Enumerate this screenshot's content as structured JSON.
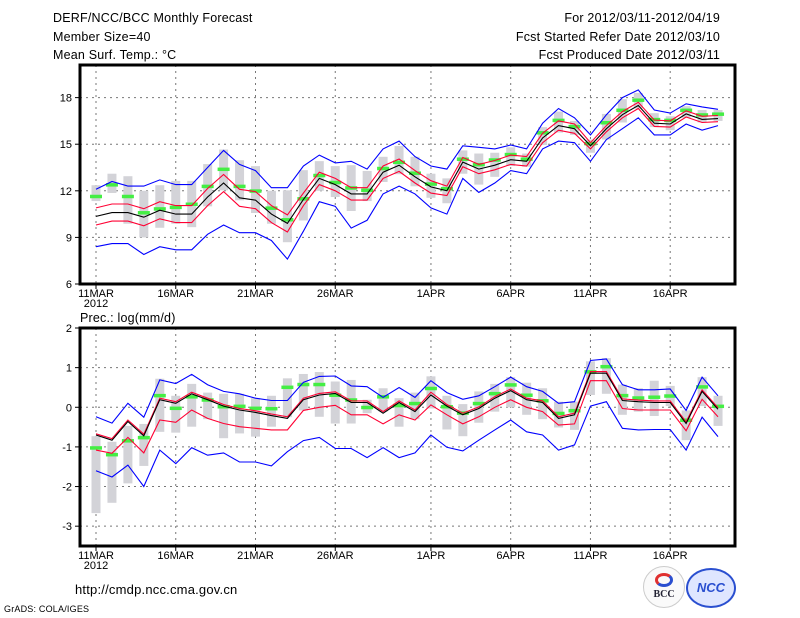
{
  "header": {
    "title": "DERF/NCC/BCC Monthly Forecast",
    "member_size": "Member Size=40",
    "variable": "Mean Surf. Temp.: °C",
    "period": "For 2012/03/11-2012/04/19",
    "started": "Fcst Started Refer Date 2012/03/10",
    "produced": "Fcst Produced Date 2012/03/11"
  },
  "footer": {
    "url": "http://cmdp.ncc.cma.gov.cn",
    "credit": "GrADS: COLA/IGES",
    "logo_bcc": "BCC",
    "logo_ncc": "NCC"
  },
  "colors": {
    "ensemble_range": "#0000ff",
    "spread": "#ff0033",
    "mean": "#000000",
    "observed": "#44ee44",
    "box": "#d3d3d8"
  },
  "chart_data": [
    {
      "type": "line",
      "title": "Mean Surf. Temp.: °C",
      "ylabel": "°C",
      "ylim": [
        6,
        20.1
      ],
      "yticks": [
        "6",
        "9",
        "12",
        "15",
        "18"
      ],
      "ytick_values": [
        6,
        9,
        12,
        15,
        18
      ],
      "xticks": [
        "11MAR",
        "16MAR",
        "21MAR",
        "26MAR",
        "1APR",
        "6APR",
        "11APR",
        "16APR"
      ],
      "xtick_days": [
        0,
        5,
        10,
        15,
        21,
        26,
        31,
        36
      ],
      "xyear": "2012",
      "grid": true,
      "days": 40,
      "series": [
        {
          "name": "max",
          "color": "#0000ff",
          "values": [
            12.1,
            12.6,
            12.3,
            12.3,
            12.7,
            12.4,
            12.4,
            13.5,
            14.6,
            13.7,
            13.3,
            12.2,
            12.2,
            13.6,
            14.3,
            13.8,
            13.9,
            13.4,
            14.7,
            15.2,
            14.2,
            13.6,
            13.4,
            14.9,
            14.8,
            14.7,
            14.95,
            14.7,
            16.35,
            17.3,
            16.7,
            15.6,
            16.9,
            18.0,
            18.5,
            17.2,
            17.0,
            17.6,
            17.4,
            17.25
          ]
        },
        {
          "name": "mean+sd",
          "color": "#ff0033",
          "values": [
            10.9,
            11.15,
            11.15,
            10.85,
            11.3,
            11.05,
            11.05,
            12.15,
            13.05,
            12.1,
            11.95,
            11.05,
            10.45,
            11.85,
            13.2,
            12.8,
            12.2,
            12.2,
            13.6,
            14.05,
            13.3,
            12.65,
            12.3,
            14.15,
            13.7,
            13.95,
            14.3,
            14.2,
            15.7,
            16.5,
            16.3,
            15.1,
            16.2,
            17.1,
            17.7,
            16.55,
            16.5,
            17.15,
            16.8,
            16.85
          ]
        },
        {
          "name": "mean",
          "color": "#000000",
          "values": [
            10.35,
            10.6,
            10.6,
            10.3,
            10.75,
            10.5,
            10.5,
            11.6,
            12.5,
            11.55,
            11.4,
            10.5,
            9.9,
            11.45,
            12.8,
            12.4,
            11.8,
            11.8,
            13.2,
            13.65,
            12.9,
            12.25,
            12.0,
            13.85,
            13.4,
            13.65,
            14.0,
            13.9,
            15.4,
            16.2,
            16.0,
            14.9,
            16.0,
            16.9,
            17.5,
            16.35,
            16.3,
            16.95,
            16.6,
            16.65
          ]
        },
        {
          "name": "mean-sd",
          "color": "#ff0033",
          "values": [
            9.8,
            10.05,
            10.05,
            9.75,
            10.2,
            9.95,
            9.95,
            11.05,
            11.95,
            11.0,
            10.85,
            9.95,
            9.35,
            11.05,
            12.4,
            12.0,
            11.4,
            11.4,
            12.8,
            13.25,
            12.5,
            11.85,
            11.7,
            13.55,
            13.1,
            13.35,
            13.7,
            13.6,
            15.1,
            15.9,
            15.7,
            14.7,
            15.8,
            16.7,
            17.3,
            16.15,
            16.1,
            16.75,
            16.4,
            16.45
          ]
        },
        {
          "name": "min",
          "color": "#0000ff",
          "values": [
            8.4,
            8.6,
            8.6,
            7.9,
            8.4,
            8.2,
            8.2,
            9.2,
            9.8,
            9.3,
            9.3,
            8.8,
            7.6,
            9.4,
            11.3,
            11.0,
            9.6,
            10.1,
            11.8,
            12.3,
            11.8,
            10.9,
            10.5,
            12.8,
            11.9,
            12.5,
            13.3,
            13.1,
            14.7,
            15.2,
            15.1,
            13.9,
            15.3,
            16.0,
            16.7,
            15.6,
            15.6,
            16.3,
            15.9,
            16.2
          ]
        }
      ],
      "observed": [
        11.65,
        12.4,
        11.65,
        10.6,
        10.85,
        10.95,
        11.15,
        12.3,
        13.4,
        12.3,
        12.0,
        10.9,
        10.15,
        11.5,
        13.0,
        12.55,
        12.2,
        12.05,
        13.45,
        13.85,
        13.15,
        12.45,
        12.15,
        14.05,
        13.7,
        14.0,
        14.35,
        14.05,
        15.75,
        16.55,
        16.15,
        15.05,
        16.4,
        17.2,
        17.85,
        16.6,
        16.55,
        17.2,
        16.9,
        16.95
      ],
      "box_high": [
        12.36,
        13.1,
        12.94,
        12.0,
        12.36,
        12.64,
        12.64,
        13.72,
        14.66,
        13.97,
        13.59,
        12.0,
        12.03,
        13.33,
        13.91,
        13.59,
        13.65,
        13.28,
        14.19,
        14.88,
        14.19,
        13.1,
        12.8,
        14.6,
        14.4,
        14.45,
        14.8,
        14.4,
        16.1,
        17.1,
        16.5,
        15.3,
        16.95,
        17.9,
        18.3,
        17.0,
        16.8,
        17.45,
        17.2,
        17.2
      ],
      "box_low": [
        11.34,
        11.86,
        9.88,
        9.0,
        9.62,
        9.88,
        9.66,
        11.0,
        12.03,
        11.39,
        10.57,
        9.88,
        8.69,
        10.09,
        12.0,
        11.6,
        10.7,
        11.34,
        12.57,
        13.07,
        12.29,
        11.55,
        11.2,
        13.1,
        12.4,
        12.9,
        13.6,
        13.55,
        14.95,
        15.75,
        15.6,
        14.45,
        15.3,
        16.4,
        17.3,
        16.1,
        15.9,
        16.7,
        16.4,
        16.5
      ]
    },
    {
      "type": "line",
      "title": "Prec.: log(mm/d)",
      "ylabel": "log(mm/d)",
      "ylim": [
        -3.5,
        2
      ],
      "yticks": [
        "-3",
        "-2",
        "-1",
        "0",
        "1",
        "2"
      ],
      "ytick_values": [
        -3,
        -2,
        -1,
        0,
        1,
        2
      ],
      "xticks": [
        "11MAR",
        "16MAR",
        "21MAR",
        "26MAR",
        "1APR",
        "6APR",
        "11APR",
        "16APR"
      ],
      "xtick_days": [
        0,
        5,
        10,
        15,
        21,
        26,
        31,
        36
      ],
      "xyear": "2012",
      "grid": true,
      "days": 40,
      "series": [
        {
          "name": "max",
          "color": "#0000ff",
          "values": [
            -0.24,
            -0.4,
            0.1,
            -0.25,
            0.69,
            0.6,
            0.83,
            0.57,
            0.4,
            0.34,
            0.23,
            0.17,
            0.17,
            0.63,
            0.78,
            0.79,
            0.54,
            0.52,
            0.25,
            0.5,
            0.25,
            0.67,
            0.37,
            0.2,
            0.29,
            0.52,
            0.76,
            0.52,
            0.4,
            0.1,
            0.14,
            1.18,
            1.22,
            0.57,
            0.44,
            0.44,
            0.46,
            -0.08,
            0.76,
            0.29
          ]
        },
        {
          "name": "mean+sd",
          "color": "#ff0033",
          "values": [
            -0.67,
            -0.79,
            -0.32,
            -0.68,
            0.23,
            0.14,
            0.38,
            0.23,
            0.07,
            -0.03,
            -0.09,
            -0.17,
            -0.24,
            0.23,
            0.35,
            0.39,
            0.16,
            0.16,
            -0.11,
            0.16,
            -0.07,
            0.38,
            0.07,
            -0.15,
            0.01,
            0.27,
            0.46,
            0.23,
            0.16,
            -0.24,
            -0.15,
            0.9,
            0.9,
            0.21,
            0.18,
            0.16,
            0.16,
            -0.37,
            0.44,
            -0.01
          ]
        },
        {
          "name": "mean",
          "color": "#000000",
          "values": [
            -0.7,
            -0.83,
            -0.36,
            -0.72,
            0.19,
            0.1,
            0.34,
            0.19,
            0.03,
            -0.07,
            -0.13,
            -0.21,
            -0.28,
            0.19,
            0.31,
            0.35,
            0.12,
            0.12,
            -0.15,
            0.12,
            -0.11,
            0.31,
            0.03,
            -0.19,
            -0.03,
            0.23,
            0.42,
            0.19,
            0.12,
            -0.28,
            -0.19,
            0.86,
            0.86,
            0.17,
            0.14,
            0.12,
            0.12,
            -0.41,
            0.4,
            -0.05
          ]
        },
        {
          "name": "mean-sd",
          "color": "#ff0033",
          "values": [
            -1.08,
            -1.16,
            -0.76,
            -1.15,
            -0.32,
            -0.38,
            -0.07,
            -0.28,
            -0.41,
            -0.49,
            -0.53,
            -0.57,
            -0.57,
            -0.08,
            0.0,
            0.05,
            -0.19,
            -0.19,
            -0.42,
            -0.19,
            -0.32,
            0.06,
            -0.19,
            -0.42,
            -0.24,
            0.0,
            0.19,
            0.0,
            -0.11,
            -0.45,
            -0.42,
            0.67,
            0.67,
            -0.03,
            -0.07,
            -0.07,
            -0.07,
            -0.59,
            0.2,
            -0.24
          ]
        },
        {
          "name": "min",
          "color": "#0000ff",
          "values": [
            -1.6,
            -1.76,
            -1.46,
            -2.0,
            -1.08,
            -1.42,
            -1.02,
            -1.21,
            -1.15,
            -1.38,
            -1.38,
            -1.48,
            -1.12,
            -0.84,
            -0.76,
            -1.04,
            -1.04,
            -1.27,
            -1.02,
            -1.27,
            -1.15,
            -0.7,
            -1.01,
            -1.1,
            -0.83,
            -0.57,
            -0.32,
            -0.62,
            -0.7,
            -1.08,
            -0.95,
            0.03,
            0.14,
            -0.53,
            -0.57,
            -0.56,
            -0.56,
            -1.08,
            -0.25,
            -0.74
          ]
        }
      ],
      "observed": [
        -1.02,
        -1.19,
        -0.84,
        -0.76,
        0.3,
        -0.02,
        0.27,
        0.19,
        0.02,
        0.03,
        -0.02,
        -0.03,
        0.51,
        0.58,
        0.58,
        0.31,
        0.19,
        0.0,
        0.27,
        0.05,
        0.1,
        0.48,
        0.02,
        -0.14,
        0.1,
        0.35,
        0.57,
        0.31,
        0.17,
        -0.15,
        -0.08,
        0.9,
        1.03,
        0.3,
        0.24,
        0.26,
        0.29,
        -0.32,
        0.52,
        0.03
      ],
      "box_high": [
        -0.73,
        -0.87,
        -0.47,
        -0.42,
        0.72,
        0.29,
        0.59,
        0.37,
        0.34,
        0.34,
        0.23,
        0.29,
        0.73,
        0.84,
        0.89,
        0.65,
        0.69,
        0.19,
        0.48,
        0.23,
        0.37,
        0.78,
        0.29,
        0.08,
        0.4,
        0.59,
        0.76,
        0.62,
        0.48,
        0.14,
        0.14,
        1.16,
        1.24,
        0.57,
        0.48,
        0.67,
        0.54,
        -0.08,
        0.76,
        0.29
      ],
      "box_low": [
        -2.67,
        -2.41,
        -1.92,
        -1.48,
        -0.62,
        -0.64,
        -0.49,
        -0.3,
        -0.78,
        -0.66,
        -0.74,
        -0.49,
        -0.25,
        -0.08,
        -0.24,
        -0.41,
        -0.41,
        -0.15,
        -0.11,
        -0.49,
        -0.3,
        -0.03,
        -0.56,
        -0.73,
        -0.39,
        -0.11,
        0.0,
        -0.19,
        -0.3,
        -0.51,
        -0.57,
        0.31,
        0.34,
        -0.19,
        -0.11,
        -0.22,
        0.03,
        -0.83,
        0.03,
        -0.47
      ]
    }
  ]
}
